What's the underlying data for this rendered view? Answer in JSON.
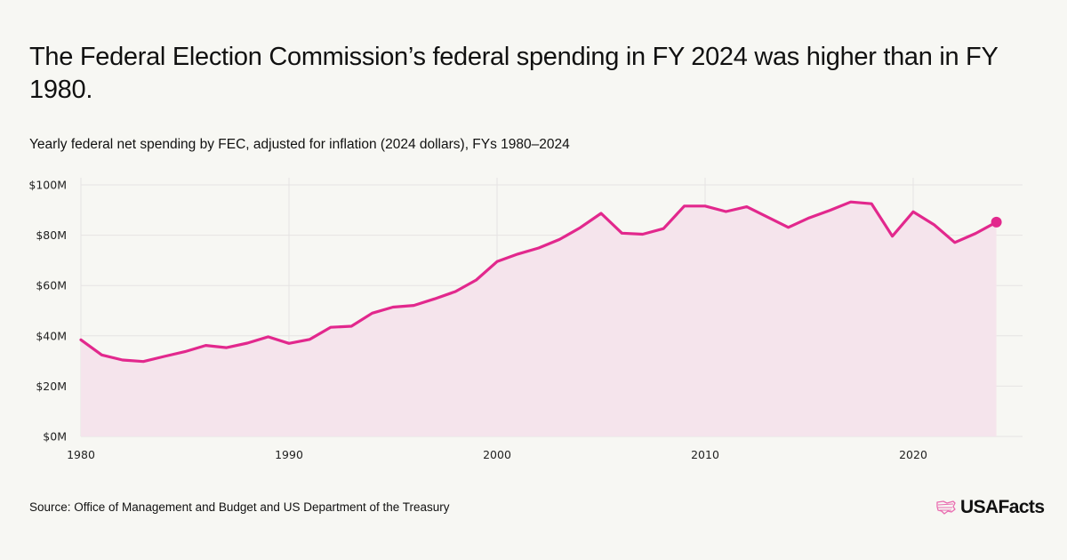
{
  "header": {
    "title": "The Federal Election Commission’s federal spending in FY 2024 was higher than in FY 1980.",
    "subtitle": "Yearly federal net spending by FEC, adjusted for inflation (2024 dollars), FYs 1980–2024"
  },
  "footer": {
    "source": "Source: Office of Management and Budget and US Department of the Treasury",
    "logo_text": "USAFacts",
    "logo_icon": "us-map-icon"
  },
  "colors": {
    "line": "#e2288d",
    "fill": "#f5e4ec",
    "grid": "#e6e3e3",
    "background": "#f7f7f3"
  },
  "chart_data": {
    "type": "area",
    "title": "The Federal Election Commission’s federal spending in FY 2024 was higher than in FY 1980.",
    "subtitle": "Yearly federal net spending by FEC, adjusted for inflation (2024 dollars), FYs 1980–2024",
    "xlabel": "",
    "ylabel": "",
    "x": [
      1980,
      1981,
      1982,
      1983,
      1984,
      1985,
      1986,
      1987,
      1988,
      1989,
      1990,
      1991,
      1992,
      1993,
      1994,
      1995,
      1996,
      1997,
      1998,
      1999,
      2000,
      2001,
      2002,
      2003,
      2004,
      2005,
      2006,
      2007,
      2008,
      2009,
      2010,
      2011,
      2012,
      2013,
      2014,
      2015,
      2016,
      2017,
      2018,
      2019,
      2020,
      2021,
      2022,
      2023,
      2024
    ],
    "series": [
      {
        "name": "Federal net spending (2024 dollars, millions)",
        "values": [
          38.4,
          32.4,
          30.4,
          29.8,
          31.8,
          33.7,
          36.2,
          35.3,
          37.1,
          39.6,
          37.0,
          38.6,
          43.4,
          43.8,
          49.0,
          51.4,
          52.1,
          54.7,
          57.6,
          62.2,
          69.5,
          72.5,
          74.9,
          78.3,
          83.0,
          88.7,
          80.8,
          80.4,
          82.6,
          91.6,
          91.6,
          89.4,
          91.3,
          87.2,
          83.1,
          86.9,
          89.9,
          93.2,
          92.5,
          79.6,
          89.3,
          84.2,
          77.1,
          80.7,
          85.2
        ]
      }
    ],
    "xlim": [
      1980,
      2025
    ],
    "ylim": [
      0,
      100
    ],
    "xticks": [
      1980,
      1990,
      2000,
      2010,
      2020
    ],
    "xtick_labels": [
      "1980",
      "1990",
      "2000",
      "2010",
      "2020"
    ],
    "yticks": [
      0,
      20,
      40,
      60,
      80,
      100
    ],
    "ytick_labels": [
      "$0M",
      "$20M",
      "$40M",
      "$60M",
      "$80M",
      "$100M"
    ],
    "grid": true,
    "highlight_last_point": true,
    "legend": "none"
  }
}
